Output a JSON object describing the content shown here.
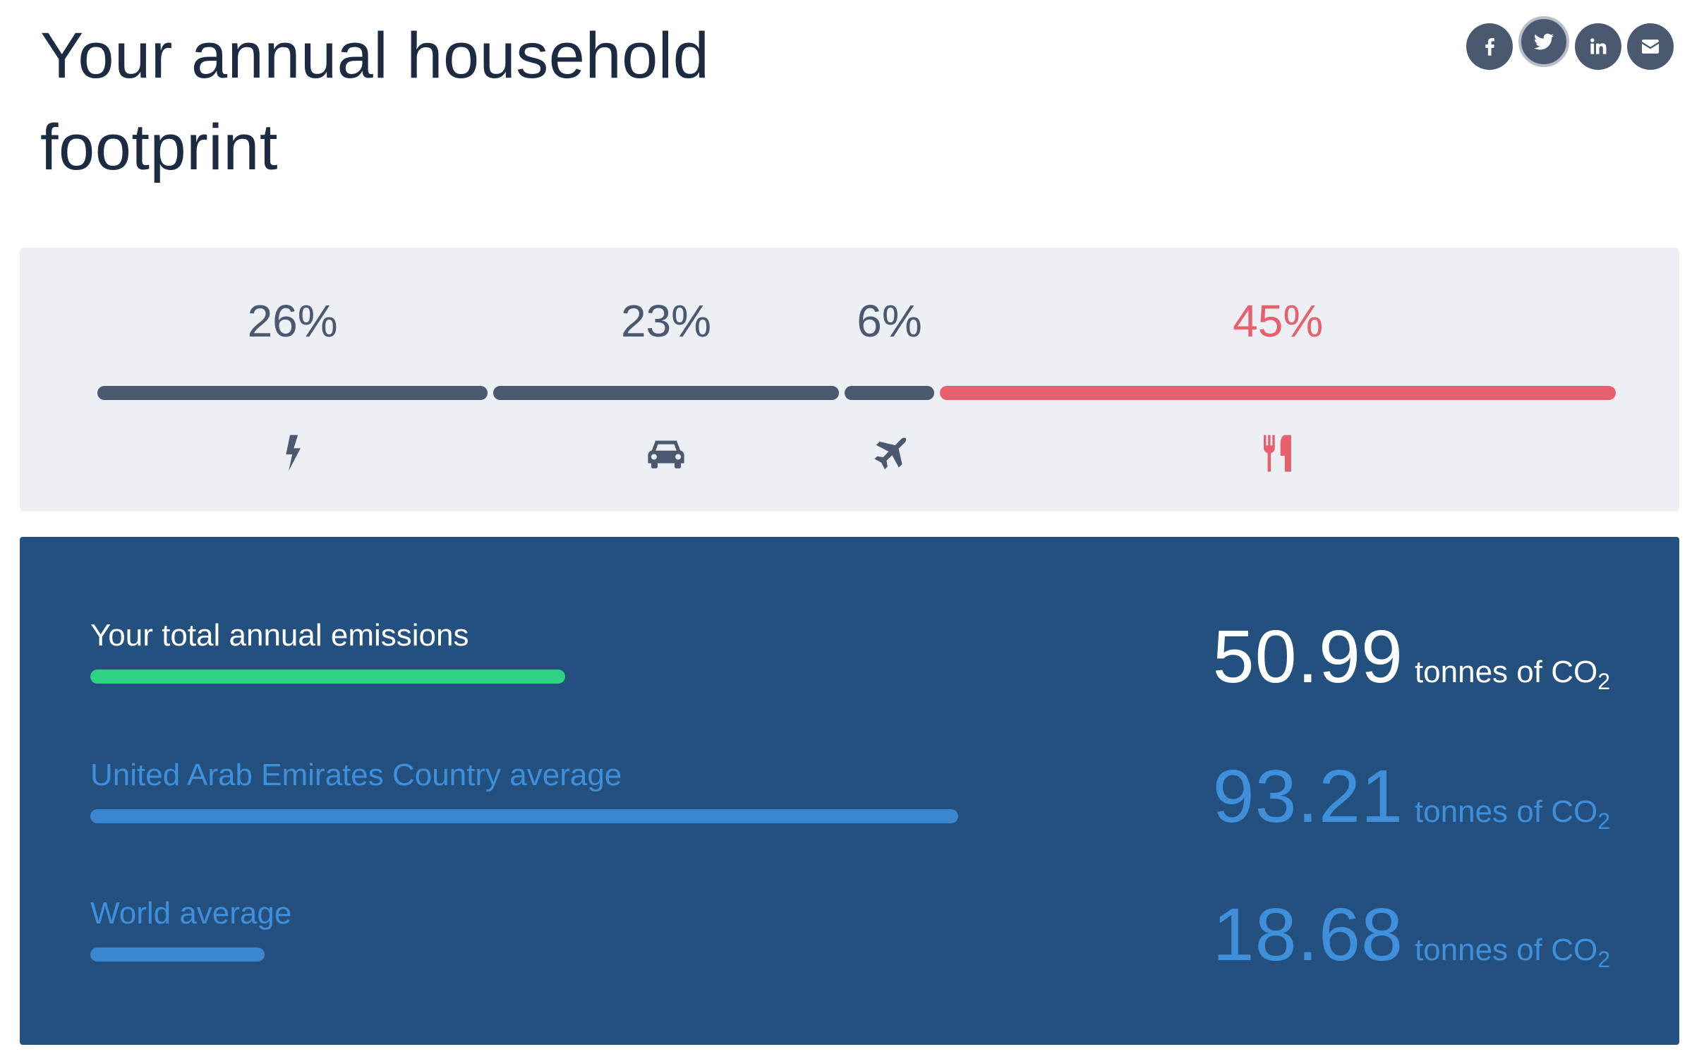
{
  "header": {
    "title": "Your annual household footprint"
  },
  "share": [
    {
      "name": "facebook",
      "icon": "facebook-icon"
    },
    {
      "name": "twitter",
      "icon": "twitter-icon",
      "active": true
    },
    {
      "name": "linkedin",
      "icon": "linkedin-icon"
    },
    {
      "name": "email",
      "icon": "mail-icon"
    }
  ],
  "breakdown": {
    "segments": [
      {
        "id": "energy",
        "percent_label": "26%",
        "share": 0.26,
        "icon": "lightning-icon",
        "color": "#4a5970"
      },
      {
        "id": "car",
        "percent_label": "23%",
        "share": 0.23,
        "icon": "car-icon",
        "color": "#4a5970"
      },
      {
        "id": "flights",
        "percent_label": "6%",
        "share": 0.06,
        "icon": "airplane-icon",
        "color": "#4a5970"
      },
      {
        "id": "food",
        "percent_label": "45%",
        "share": 0.45,
        "icon": "fork-knife-icon",
        "color": "#e8606d",
        "highlight": true
      }
    ]
  },
  "comparison": {
    "unit_text": "tonnes of CO",
    "unit_subscript": "2",
    "rows": [
      {
        "id": "you",
        "label": "Your total annual emissions",
        "value": "50.99",
        "tonnes": 50.99,
        "color": "#2fd183"
      },
      {
        "id": "country",
        "label": "United Arab Emirates Country average",
        "value": "93.21",
        "tonnes": 93.21,
        "color": "#3a86cf"
      },
      {
        "id": "world",
        "label": "World average",
        "value": "18.68",
        "tonnes": 18.68,
        "color": "#3a86cf"
      }
    ]
  },
  "colors": {
    "title": "#1c2b41",
    "panel_light": "#eceff3",
    "panel_dark": "#24507f",
    "segment_default": "#4a5970",
    "segment_highlight": "#e8606d",
    "you_bar": "#2fd183",
    "average": "#3f8fdb"
  }
}
